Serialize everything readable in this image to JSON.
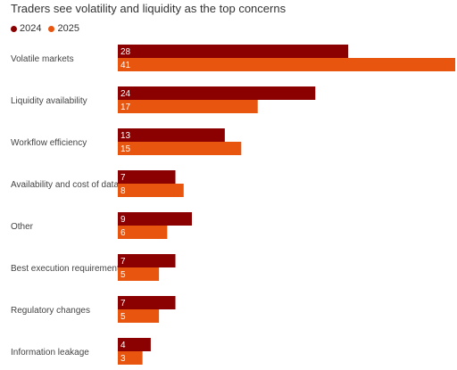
{
  "chart_data": {
    "type": "bar",
    "orientation": "horizontal",
    "title": "Traders see volatility and liquidity as the top concerns",
    "categories": [
      "Volatile markets",
      "Liquidity availability",
      "Workflow efficiency",
      "Availability and cost of data",
      "Other",
      "Best execution requirement",
      "Regulatory changes",
      "Information leakage"
    ],
    "series": [
      {
        "name": "2024",
        "color": "#8b0000",
        "values": [
          28,
          24,
          13,
          7,
          9,
          7,
          7,
          4
        ]
      },
      {
        "name": "2025",
        "color": "#e8550f",
        "values": [
          41,
          17,
          15,
          8,
          6,
          5,
          5,
          3
        ]
      }
    ],
    "xlim": [
      0,
      41
    ],
    "legend_position": "top-left",
    "grid": false,
    "data_labels": "inside-bar-start"
  }
}
